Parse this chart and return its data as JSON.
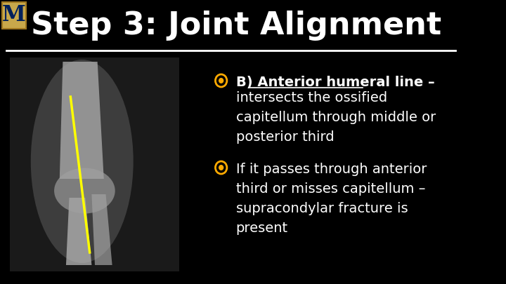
{
  "background_color": "#000000",
  "title": "Step 3: Joint Alignment",
  "title_color": "#ffffff",
  "title_fontsize": 32,
  "separator_color": "#ffffff",
  "bullet_icon_outer": "#ffaa00",
  "bullet_icon_inner": "#ffaa00",
  "text_fontsize": 14,
  "text_color": "#ffffff",
  "logo_bg": "#c8a84b",
  "logo_text": "M",
  "logo_text_color": "#00205b",
  "line_color": "#ffff00",
  "bullet1_prefix": "B) ",
  "bullet1_underlined": "Anterior humeral line –",
  "bullet1_body": "intersects the ossified\ncapitellum through middle or\nposterior third",
  "bullet2_body": "If it passes through anterior\nthird or misses capitellum –\nsupracondylar fracture is\npresent"
}
